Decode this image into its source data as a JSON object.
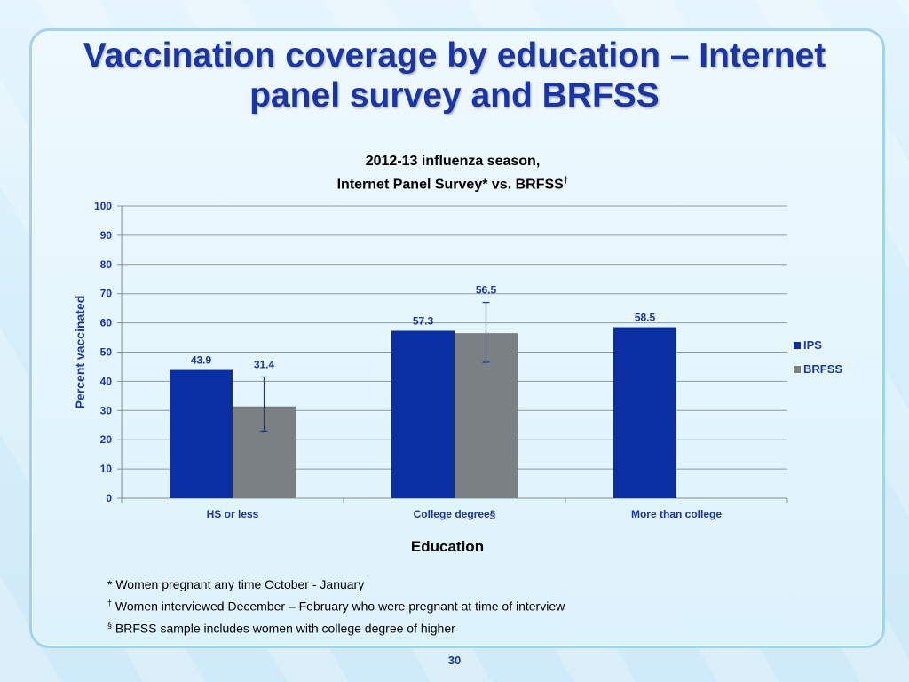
{
  "slide": {
    "title_line1": "Vaccination coverage by education – Internet",
    "title_line2": "panel survey and BRFSS",
    "page_number": "30"
  },
  "chart_header": {
    "line1": "2012-13 influenza season,",
    "line2": "Internet Panel Survey* vs. BRFSS",
    "line2_mark": "†"
  },
  "footnotes": {
    "note1": "* Women pregnant any time October - January",
    "note2_mark": "†",
    "note2": " Women interviewed December – February who were pregnant at time of interview",
    "note3_mark": "§",
    "note3": " BRFSS sample includes women with college degree of higher"
  },
  "chart_data": {
    "type": "bar",
    "title": "2012-13 influenza season, Internet Panel Survey* vs. BRFSS†",
    "xlabel": "Education",
    "ylabel": "Percent vaccinated",
    "ylim": [
      0,
      100
    ],
    "yticks": [
      0,
      10,
      20,
      30,
      40,
      50,
      60,
      70,
      80,
      90,
      100
    ],
    "grid": true,
    "legend_position": "right",
    "categories": [
      "HS or less",
      "College degree§",
      "More than college"
    ],
    "series": [
      {
        "name": "IPS",
        "color": "#0a2fa3",
        "values": [
          43.9,
          57.3,
          58.5
        ],
        "labels": [
          "43.9",
          "57.3",
          "58.5"
        ]
      },
      {
        "name": "BRFSS",
        "color": "#7a8083",
        "values": [
          31.4,
          56.5,
          null
        ],
        "labels": [
          "31.4",
          "56.5",
          ""
        ],
        "error_bars": [
          [
            23.0,
            41.5
          ],
          [
            46.5,
            67.0
          ],
          null
        ]
      }
    ],
    "label_color": "#1a35a8",
    "axis_label_color": "#1a35a8"
  }
}
